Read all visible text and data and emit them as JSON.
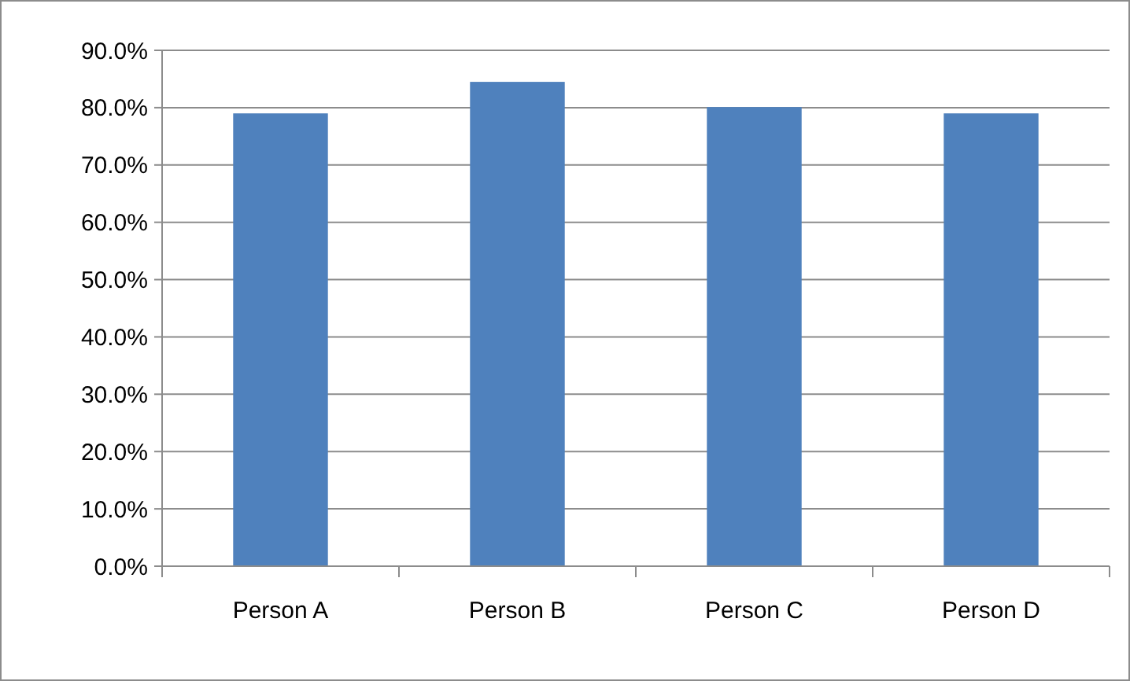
{
  "chart_data": {
    "type": "bar",
    "categories": [
      "Person A",
      "Person B",
      "Person C",
      "Person D"
    ],
    "values": [
      79.0,
      84.5,
      80.1,
      79.0
    ],
    "color": "#4f81bd",
    "ylim": [
      0,
      90
    ],
    "yticks": [
      {
        "value": 0,
        "label": "0.0%"
      },
      {
        "value": 10,
        "label": "10.0%"
      },
      {
        "value": 20,
        "label": "20.0%"
      },
      {
        "value": 30,
        "label": "30.0%"
      },
      {
        "value": 40,
        "label": "40.0%"
      },
      {
        "value": 50,
        "label": "50.0%"
      },
      {
        "value": 60,
        "label": "60.0%"
      },
      {
        "value": 70,
        "label": "70.0%"
      },
      {
        "value": 80,
        "label": "80.0%"
      },
      {
        "value": 90,
        "label": "90.0%"
      }
    ],
    "grid": "y"
  }
}
